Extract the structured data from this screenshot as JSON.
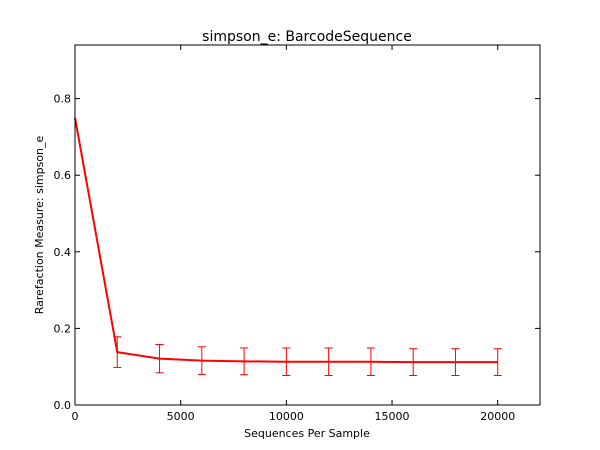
{
  "chart_data": {
    "type": "line",
    "title": "simpson_e: BarcodeSequence",
    "xlabel": "Sequences Per Sample",
    "ylabel": "Rarefaction Measure: simpson_e",
    "xlim": [
      0,
      22000
    ],
    "ylim": [
      0,
      0.94
    ],
    "xticks": [
      0,
      5000,
      10000,
      15000,
      20000
    ],
    "yticks": [
      0.0,
      0.2,
      0.4,
      0.6,
      0.8
    ],
    "grid": false,
    "series": [
      {
        "color": "#ff0000",
        "x": [
          0,
          2000,
          4000,
          6000,
          8000,
          10000,
          12000,
          14000,
          16000,
          18000,
          20000
        ],
        "y": [
          0.75,
          0.138,
          0.121,
          0.116,
          0.114,
          0.113,
          0.113,
          0.113,
          0.112,
          0.112,
          0.112
        ],
        "err": [
          0,
          0.04,
          0.037,
          0.036,
          0.035,
          0.036,
          0.036,
          0.036,
          0.035,
          0.035,
          0.035
        ]
      }
    ]
  }
}
